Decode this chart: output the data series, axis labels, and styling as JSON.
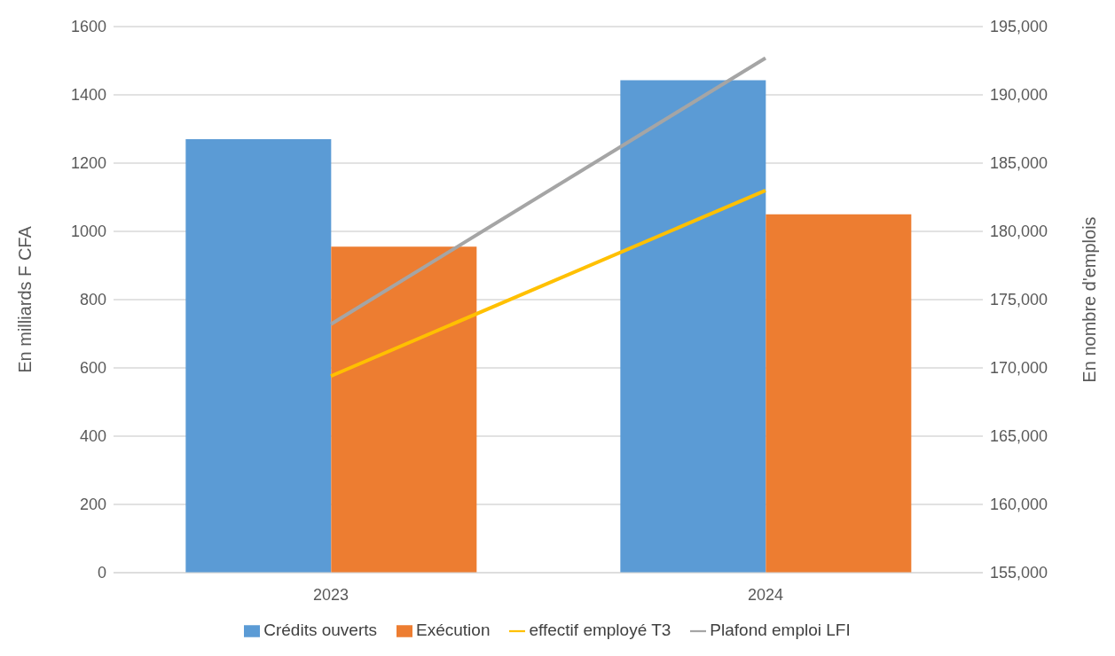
{
  "chart_data": {
    "type": "bar",
    "categories": [
      "2023",
      "2024"
    ],
    "ylabel": "En milliards F CFA",
    "y2label": "En nombre d'emplois",
    "ylim": [
      0,
      1600
    ],
    "yticks": [
      0,
      200,
      400,
      600,
      800,
      1000,
      1200,
      1400,
      1600
    ],
    "y2lim": [
      155000,
      195000
    ],
    "y2ticks": [
      {
        "value": 155000,
        "label": "155,000"
      },
      {
        "value": 160000,
        "label": "160,000"
      },
      {
        "value": 165000,
        "label": "165,000"
      },
      {
        "value": 170000,
        "label": "170,000"
      },
      {
        "value": 175000,
        "label": "175,000"
      },
      {
        "value": 180000,
        "label": "180,000"
      },
      {
        "value": 185000,
        "label": "185,000"
      },
      {
        "value": 190000,
        "label": "190,000"
      },
      {
        "value": 195000,
        "label": "195,000"
      }
    ],
    "series": [
      {
        "name": "Crédits ouverts",
        "color": "#5b9bd5",
        "values": [
          1270,
          1443
        ]
      },
      {
        "name": "Exécution",
        "color": "#ed7d31",
        "values": [
          955,
          1050
        ]
      },
      {
        "name": "effectif employé T3",
        "type": "line",
        "axis": "y2",
        "color": "#ffc000",
        "values": [
          169400,
          183000
        ]
      },
      {
        "name": "Plafond emploi LFI",
        "type": "line",
        "axis": "y2",
        "color": "#a5a5a5",
        "values": [
          173200,
          192700
        ]
      }
    ],
    "grid": "y",
    "legend": "bottom",
    "marker": "none",
    "line_style": "solid"
  }
}
